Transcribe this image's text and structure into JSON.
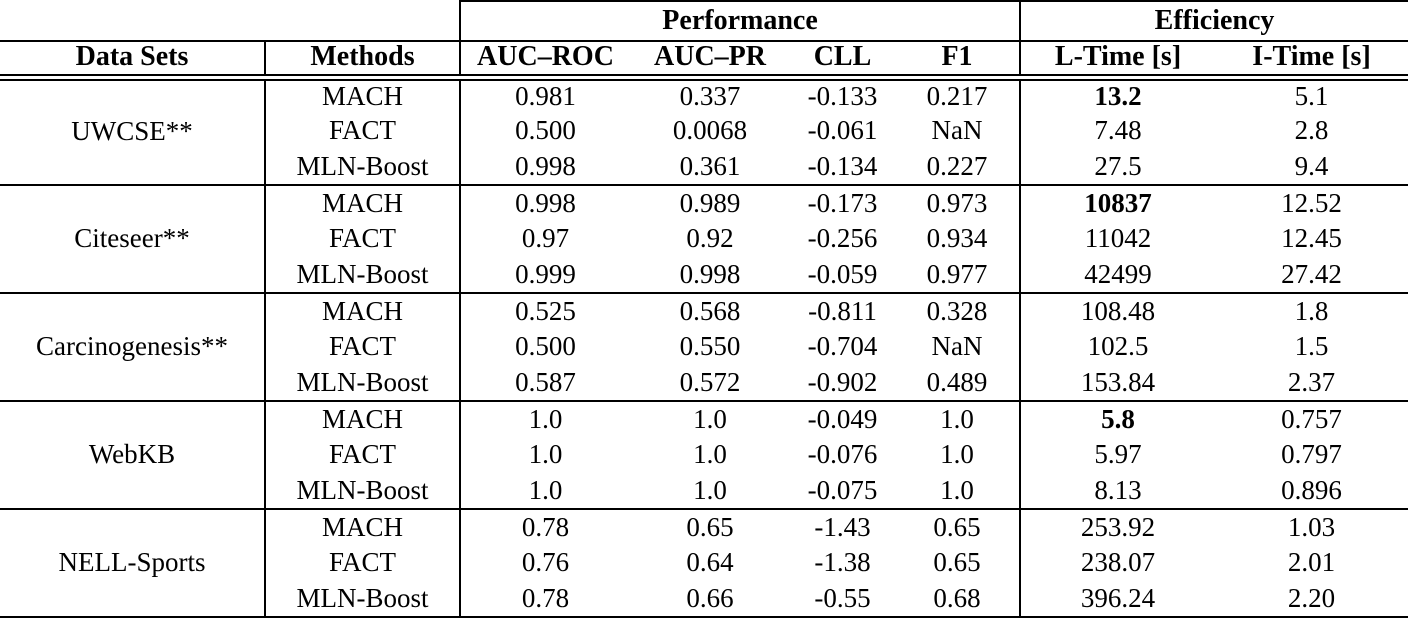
{
  "table": {
    "group_headers": {
      "performance": "Performance",
      "efficiency": "Efficiency"
    },
    "columns": {
      "dataset": "Data Sets",
      "method": "Methods",
      "auc_roc": "AUC–ROC",
      "auc_pr": "AUC–PR",
      "cll": "CLL",
      "f1": "F1",
      "l_time": "L-Time [s]",
      "i_time": "I-Time [s]"
    },
    "groups": [
      {
        "dataset": "UWCSE**",
        "rows": [
          {
            "method": "MACH",
            "values": [
              {
                "t": "0.981"
              },
              {
                "t": "0.337"
              },
              {
                "t": "-0.133"
              },
              {
                "t": "0.217"
              },
              {
                "t": "13.2",
                "bold": true
              },
              {
                "t": "5.1"
              }
            ]
          },
          {
            "method": "FACT",
            "values": [
              {
                "t": "0.500"
              },
              {
                "t": "0.0068"
              },
              {
                "t": "-0.061"
              },
              {
                "t": "NaN"
              },
              {
                "t": "7.48"
              },
              {
                "t": "2.8"
              }
            ]
          },
          {
            "method": "MLN-Boost",
            "values": [
              {
                "t": "0.998"
              },
              {
                "t": "0.361"
              },
              {
                "t": "-0.134"
              },
              {
                "t": "0.227"
              },
              {
                "t": "27.5"
              },
              {
                "t": "9.4"
              }
            ]
          }
        ]
      },
      {
        "dataset": "Citeseer**",
        "rows": [
          {
            "method": "MACH",
            "values": [
              {
                "t": "0.998"
              },
              {
                "t": "0.989"
              },
              {
                "t": "-0.173"
              },
              {
                "t": "0.973"
              },
              {
                "t": "10837",
                "bold": true
              },
              {
                "t": "12.52"
              }
            ]
          },
          {
            "method": "FACT",
            "values": [
              {
                "t": "0.97"
              },
              {
                "t": "0.92"
              },
              {
                "t": "-0.256"
              },
              {
                "t": "0.934"
              },
              {
                "t": "11042"
              },
              {
                "t": "12.45"
              }
            ]
          },
          {
            "method": "MLN-Boost",
            "values": [
              {
                "t": "0.999"
              },
              {
                "t": "0.998"
              },
              {
                "t": "-0.059"
              },
              {
                "t": "0.977"
              },
              {
                "t": "42499"
              },
              {
                "t": "27.42"
              }
            ]
          }
        ]
      },
      {
        "dataset": "Carcinogenesis**",
        "rows": [
          {
            "method": "MACH",
            "values": [
              {
                "t": "0.525"
              },
              {
                "t": "0.568"
              },
              {
                "t": "-0.811"
              },
              {
                "t": "0.328"
              },
              {
                "t": "108.48"
              },
              {
                "t": "1.8"
              }
            ]
          },
          {
            "method": "FACT",
            "values": [
              {
                "t": "0.500"
              },
              {
                "t": "0.550"
              },
              {
                "t": "-0.704"
              },
              {
                "t": "NaN"
              },
              {
                "t": "102.5"
              },
              {
                "t": "1.5"
              }
            ]
          },
          {
            "method": "MLN-Boost",
            "values": [
              {
                "t": "0.587"
              },
              {
                "t": "0.572"
              },
              {
                "t": "-0.902"
              },
              {
                "t": "0.489"
              },
              {
                "t": "153.84"
              },
              {
                "t": "2.37"
              }
            ]
          }
        ]
      },
      {
        "dataset": "WebKB",
        "rows": [
          {
            "method": "MACH",
            "values": [
              {
                "t": "1.0"
              },
              {
                "t": "1.0"
              },
              {
                "t": "-0.049"
              },
              {
                "t": "1.0"
              },
              {
                "t": "5.8",
                "bold": true
              },
              {
                "t": "0.757"
              }
            ]
          },
          {
            "method": "FACT",
            "values": [
              {
                "t": "1.0"
              },
              {
                "t": "1.0"
              },
              {
                "t": "-0.076"
              },
              {
                "t": "1.0"
              },
              {
                "t": "5.97"
              },
              {
                "t": "0.797"
              }
            ]
          },
          {
            "method": "MLN-Boost",
            "values": [
              {
                "t": "1.0"
              },
              {
                "t": "1.0"
              },
              {
                "t": "-0.075"
              },
              {
                "t": "1.0"
              },
              {
                "t": "8.13"
              },
              {
                "t": "0.896"
              }
            ]
          }
        ]
      },
      {
        "dataset": "NELL-Sports",
        "rows": [
          {
            "method": "MACH",
            "values": [
              {
                "t": "0.78"
              },
              {
                "t": "0.65"
              },
              {
                "t": "-1.43"
              },
              {
                "t": "0.65"
              },
              {
                "t": "253.92"
              },
              {
                "t": "1.03"
              }
            ]
          },
          {
            "method": "FACT",
            "values": [
              {
                "t": "0.76"
              },
              {
                "t": "0.64"
              },
              {
                "t": "-1.38"
              },
              {
                "t": "0.65"
              },
              {
                "t": "238.07"
              },
              {
                "t": "2.01"
              }
            ]
          },
          {
            "method": "MLN-Boost",
            "values": [
              {
                "t": "0.78"
              },
              {
                "t": "0.66"
              },
              {
                "t": "-0.55"
              },
              {
                "t": "0.68"
              },
              {
                "t": "396.24"
              },
              {
                "t": "2.20"
              }
            ]
          }
        ]
      }
    ]
  }
}
